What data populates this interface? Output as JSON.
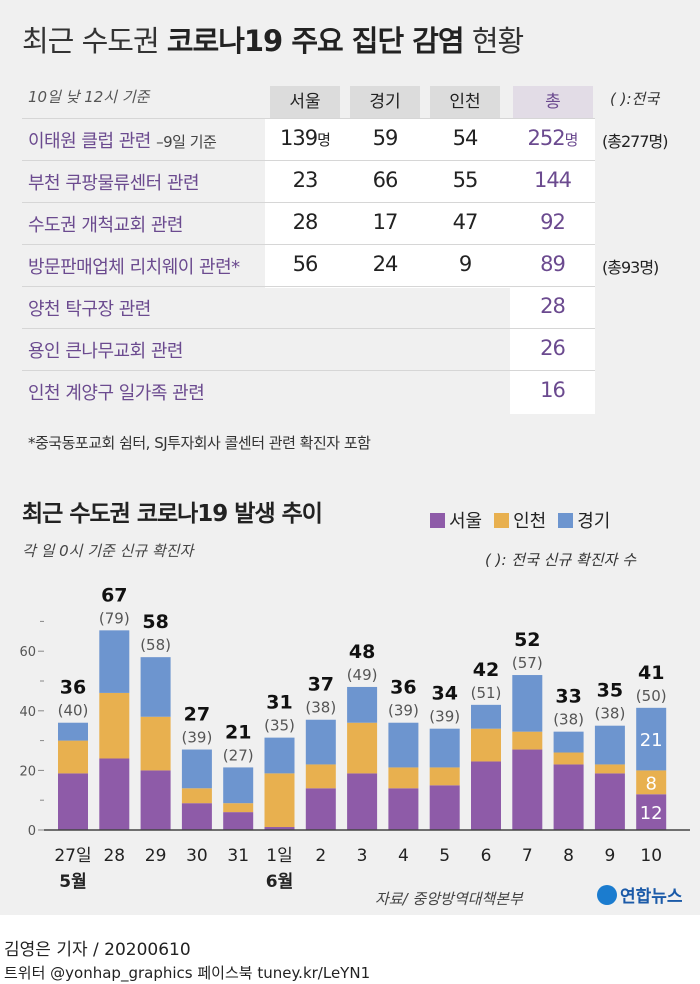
{
  "title": {
    "prefix": "최근 수도권",
    "bold": "코로나19 주요 집단 감염",
    "suffix": "현황"
  },
  "table": {
    "basis": "10일 낮 12시 기준",
    "national_note": "( ):전국",
    "headers": [
      "서울",
      "경기",
      "인천",
      "총"
    ],
    "rows": [
      {
        "label": "이태원 클럽 관련",
        "label_note": "–9일 기준",
        "seoul": "139",
        "gyeonggi": "59",
        "incheon": "54",
        "total": "252",
        "unit": "명",
        "national": "(총277명)"
      },
      {
        "label": "부천 쿠팡물류센터 관련",
        "seoul": "23",
        "gyeonggi": "66",
        "incheon": "55",
        "total": "144"
      },
      {
        "label": "수도권 개척교회 관련",
        "seoul": "28",
        "gyeonggi": "17",
        "incheon": "47",
        "total": "92"
      },
      {
        "label": "방문판매업체 리치웨이 관련*",
        "seoul": "56",
        "gyeonggi": "24",
        "incheon": "9",
        "total": "89",
        "national": "(총93명)"
      },
      {
        "label": "양천 탁구장 관련",
        "total": "28"
      },
      {
        "label": "용인 큰나무교회 관련",
        "total": "26"
      },
      {
        "label": "인천 계양구 일가족 관련",
        "total": "16"
      }
    ],
    "footnote": "*중국동포교회 쉼터, SJ투자회사 콜센터 관련 확진자 포함"
  },
  "chart_data": {
    "type": "bar",
    "stacked": true,
    "title": "최근 수도권 코로나19 발생 추이",
    "subtitle": "각 일 0시 기준 신규 확진자",
    "national_note": "( ): 전국 신규 확진자 수",
    "categories": [
      "27일",
      "28",
      "29",
      "30",
      "31",
      "1일",
      "2",
      "3",
      "4",
      "5",
      "6",
      "7",
      "8",
      "9",
      "10"
    ],
    "month_labels": [
      {
        "index": 0,
        "label": "5월"
      },
      {
        "index": 5,
        "label": "6월"
      }
    ],
    "series": [
      {
        "name": "서울",
        "color": "#8e5ba8",
        "values": [
          19,
          24,
          20,
          9,
          6,
          1,
          14,
          19,
          14,
          15,
          23,
          27,
          22,
          19,
          12
        ]
      },
      {
        "name": "인천",
        "color": "#e8b04f",
        "values": [
          11,
          22,
          18,
          5,
          3,
          18,
          8,
          17,
          7,
          6,
          11,
          6,
          4,
          3,
          8
        ]
      },
      {
        "name": "경기",
        "color": "#6d95cf",
        "values": [
          6,
          21,
          20,
          13,
          12,
          12,
          15,
          12,
          15,
          13,
          8,
          19,
          7,
          13,
          21
        ]
      }
    ],
    "legend_order": [
      "서울",
      "인천",
      "경기"
    ],
    "totals": [
      "36",
      "67",
      "58",
      "27",
      "21",
      "31",
      "37",
      "48",
      "36",
      "34",
      "42",
      "52",
      "33",
      "35",
      "41"
    ],
    "national": [
      "(40)",
      "(79)",
      "(58)",
      "(39)",
      "(27)",
      "(35)",
      "(38)",
      "(49)",
      "(39)",
      "(39)",
      "(51)",
      "(57)",
      "(38)",
      "(38)",
      "(50)"
    ],
    "segment_labels_last": [
      "12",
      "8",
      "21"
    ],
    "yticks": [
      "0",
      "20",
      "40",
      "60"
    ],
    "ylim": [
      0,
      70
    ],
    "legend": "top-right"
  },
  "source": "자료/ 중앙방역대책본부",
  "logo": "연합뉴스",
  "byline": "김영은 기자 / 20200610",
  "social": "트위터 @yonhap_graphics  페이스북 tuney.kr/LeYN1"
}
